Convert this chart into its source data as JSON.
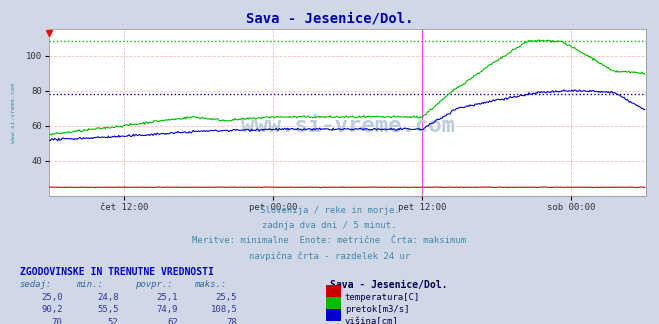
{
  "title": "Sava - Jesenice/Dol.",
  "title_color": "#0000aa",
  "bg_color": "#d0d8e8",
  "plot_bg_color": "#ffffff",
  "grid_color_h": "#ffbbbb",
  "grid_color_v": "#ffbbbb",
  "xlim": [
    0,
    576
  ],
  "ylim": [
    20,
    115
  ],
  "xtick_labels": [
    "čet 12:00",
    "pet 00:00",
    "pet 12:00",
    "sob 00:00"
  ],
  "xtick_positions": [
    72,
    216,
    360,
    504
  ],
  "temp_color": "#cc0000",
  "pretok_color": "#00bb00",
  "visina_color": "#0000cc",
  "hline_pretok_max": 108.5,
  "hline_pretok_max_color": "#00bb00",
  "hline_visina_avg": 78,
  "hline_visina_avg_color": "#0000aa",
  "vline_pos": 360,
  "vline_color": "#ff44ff",
  "subtitle1": "Slovenija / reke in morje.",
  "subtitle2": "zadnja dva dni / 5 minut.",
  "subtitle3": "Meritve: minimalne  Enote: metrične  Črta: maksimum",
  "subtitle4": "navpična črta - razdelek 24 ur",
  "subtitle_color": "#4488aa",
  "table_header": "ZGODOVINSKE IN TRENUTNE VREDNOSTI",
  "table_header_color": "#0000cc",
  "col_headers": [
    "sedaj:",
    "min.:",
    "povpr.:",
    "maks.:"
  ],
  "row1": [
    "25,0",
    "24,8",
    "25,1",
    "25,5",
    "temperatura[C]"
  ],
  "row2": [
    "90,2",
    "55,5",
    "74,9",
    "108,5",
    "pretok[m3/s]"
  ],
  "row3": [
    "70",
    "52",
    "62",
    "78",
    "višina[cm]"
  ],
  "watermark": "www.si-vreme.com",
  "watermark_color": "#bbccdd",
  "left_label": "www.si-vreme.com",
  "left_label_color": "#4488aa",
  "station_label": "Sava - Jesenice/Dol."
}
